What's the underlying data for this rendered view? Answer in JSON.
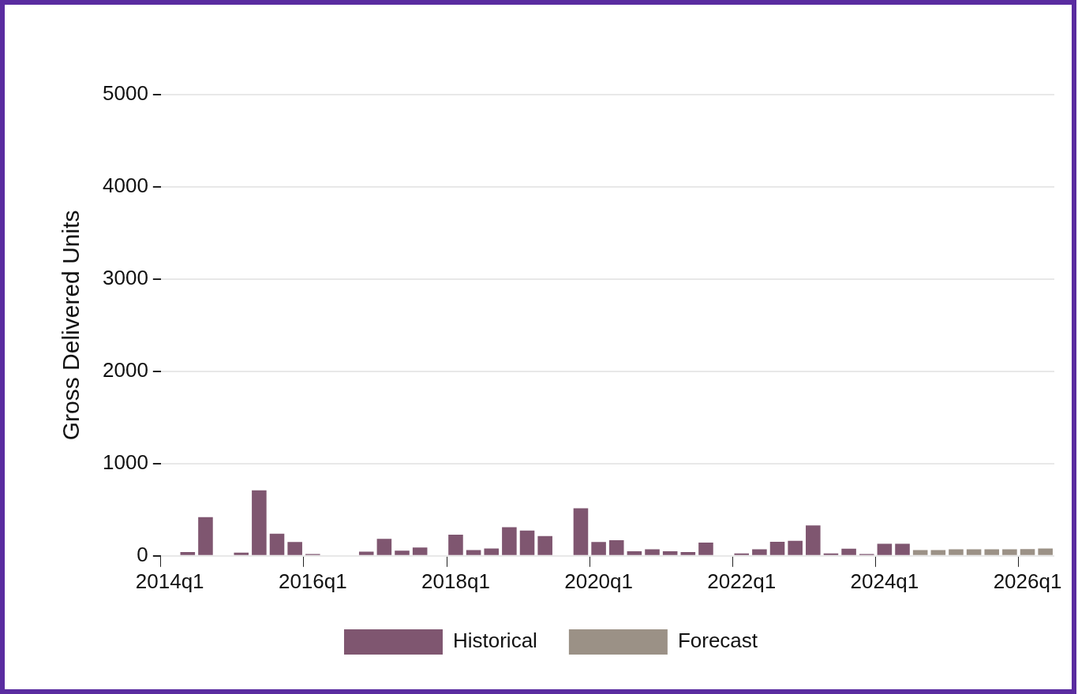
{
  "chart_data": {
    "type": "bar",
    "ylabel": "Gross Delivered Units",
    "categories": [
      "2014q1",
      null,
      null,
      null,
      null,
      null,
      null,
      null,
      "2016q1",
      null,
      null,
      null,
      null,
      null,
      null,
      null,
      "2018q1",
      null,
      null,
      null,
      null,
      null,
      null,
      null,
      "2020q1",
      null,
      null,
      null,
      null,
      null,
      null,
      null,
      "2022q1",
      null,
      null,
      null,
      null,
      null,
      null,
      null,
      "2024q1",
      null,
      null,
      null,
      null,
      null,
      null,
      null,
      "2026q1",
      null
    ],
    "series": [
      {
        "name": "Historical",
        "color": "#7f5670",
        "values": [
          null,
          40,
          420,
          null,
          35,
          710,
          240,
          150,
          20,
          null,
          null,
          45,
          185,
          55,
          90,
          null,
          230,
          62,
          80,
          310,
          274,
          214,
          null,
          515,
          149,
          170,
          50,
          71,
          50,
          42,
          143,
          null,
          27,
          71,
          152,
          163,
          330,
          27,
          77,
          20,
          131,
          131,
          null,
          null,
          null,
          null,
          null,
          null,
          null,
          null
        ]
      },
      {
        "name": "Forecast",
        "color": "#9b9186",
        "values": [
          null,
          null,
          null,
          null,
          null,
          null,
          null,
          null,
          null,
          null,
          null,
          null,
          null,
          null,
          null,
          null,
          null,
          null,
          null,
          null,
          null,
          null,
          null,
          null,
          null,
          null,
          null,
          null,
          null,
          null,
          null,
          null,
          null,
          null,
          null,
          null,
          null,
          null,
          null,
          null,
          null,
          null,
          62,
          62,
          71,
          71,
          71,
          71,
          73,
          80
        ]
      }
    ],
    "ylim": [
      0,
      5000
    ],
    "yticks": [
      0,
      1000,
      2000,
      3000,
      4000,
      5000
    ],
    "grid": "y",
    "legend": "bottom"
  }
}
